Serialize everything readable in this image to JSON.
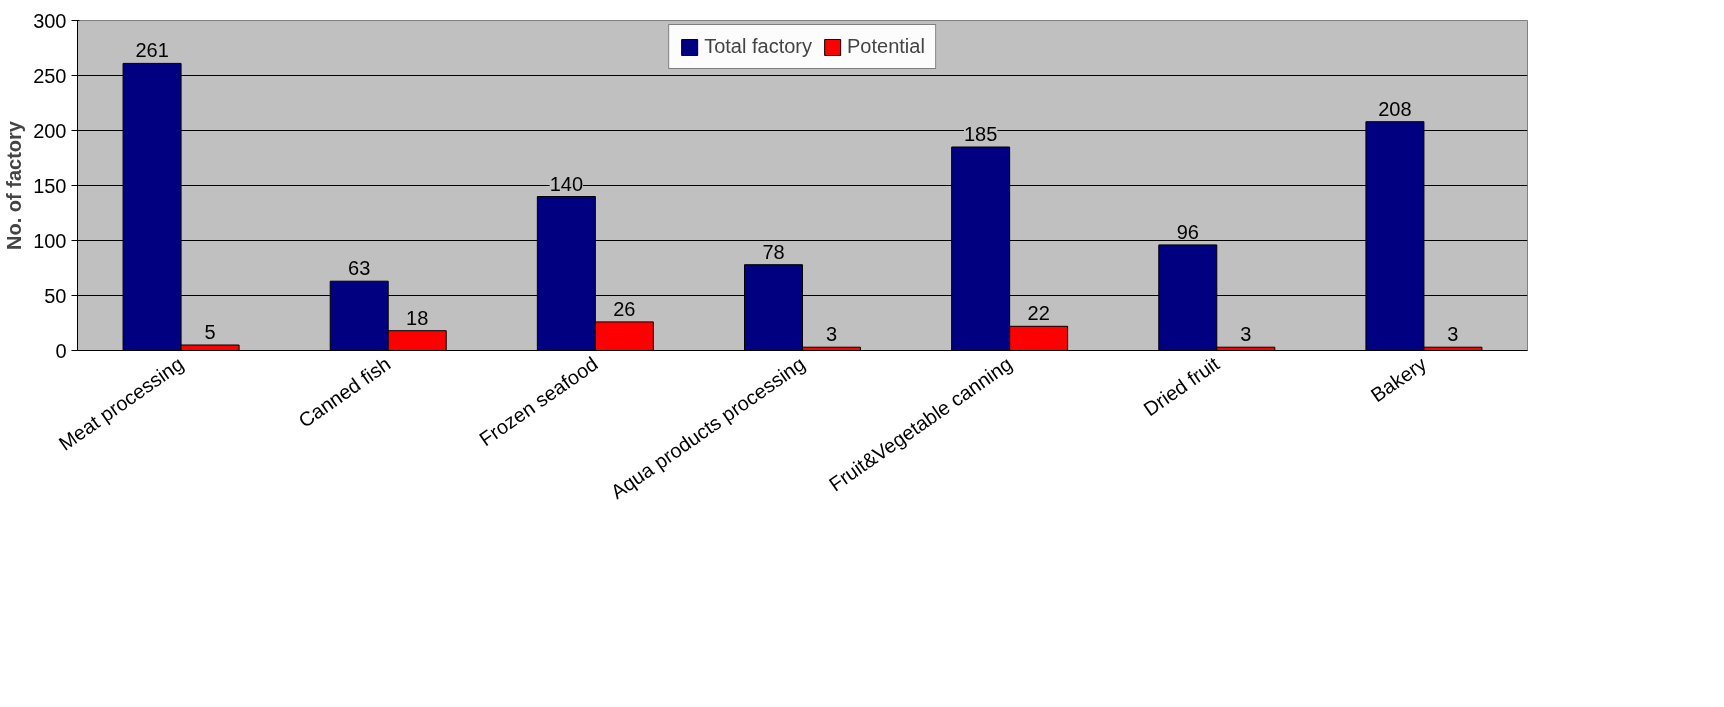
{
  "chart_data": {
    "type": "bar",
    "ylabel": "No. of factory",
    "categories": [
      "Meat processing",
      "Canned fish",
      "Frozen seafood",
      "Aqua products processing",
      "Fruit&Vegetable canning",
      "Dried fruit",
      "Bakery"
    ],
    "series": [
      {
        "name": "Total factory",
        "color": "#000080",
        "values": [
          261,
          63,
          140,
          78,
          185,
          96,
          208
        ]
      },
      {
        "name": "Potential",
        "color": "#ff0000",
        "values": [
          5,
          18,
          26,
          3,
          22,
          3,
          3
        ]
      }
    ],
    "ylim": [
      0,
      300
    ],
    "yticks": [
      0,
      50,
      100,
      150,
      200,
      250,
      300
    ],
    "grid": "y",
    "legend": "top",
    "data_labels": true
  }
}
